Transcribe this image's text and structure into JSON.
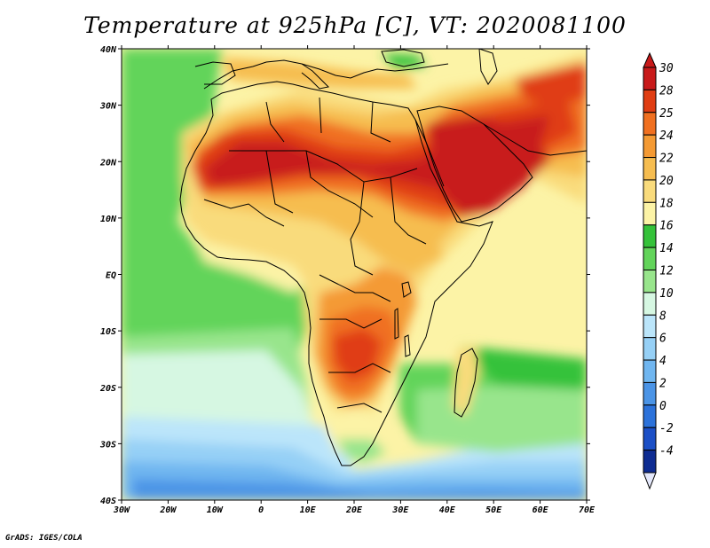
{
  "title": "Temperature at 925hPa [C], VT: 2020081100",
  "credit": "GrADS: IGES/COLA",
  "map": {
    "variable": "Temperature",
    "level": "925hPa",
    "units": "C",
    "valid_time": "2020081100",
    "lat_ticks": [
      "40N",
      "30N",
      "20N",
      "10N",
      "EQ",
      "10S",
      "20S",
      "30S",
      "40S"
    ],
    "lon_ticks": [
      "30W",
      "20W",
      "10W",
      "0",
      "10E",
      "20E",
      "30E",
      "40E",
      "50E",
      "60E",
      "70E"
    ]
  },
  "legend": {
    "labels": [
      "30",
      "28",
      "25",
      "24",
      "22",
      "20",
      "18",
      "16",
      "14",
      "12",
      "10",
      "8",
      "6",
      "4",
      "2",
      "0",
      "-2",
      "-4"
    ],
    "colors": [
      "#c81a1a",
      "#e03d12",
      "#f07020",
      "#f49a34",
      "#f6bd50",
      "#f9db7c",
      "#fcf3a6",
      "#35c23a",
      "#62d45a",
      "#98e58c",
      "#d6f7e2",
      "#bbe5fa",
      "#96d0f6",
      "#70b6f0",
      "#4b94e6",
      "#2c72da",
      "#1b4fc6",
      "#0e2c92"
    ],
    "top_arrow_color": "#c81a1a",
    "bottom_arrow_color": "#e4e8fb"
  }
}
